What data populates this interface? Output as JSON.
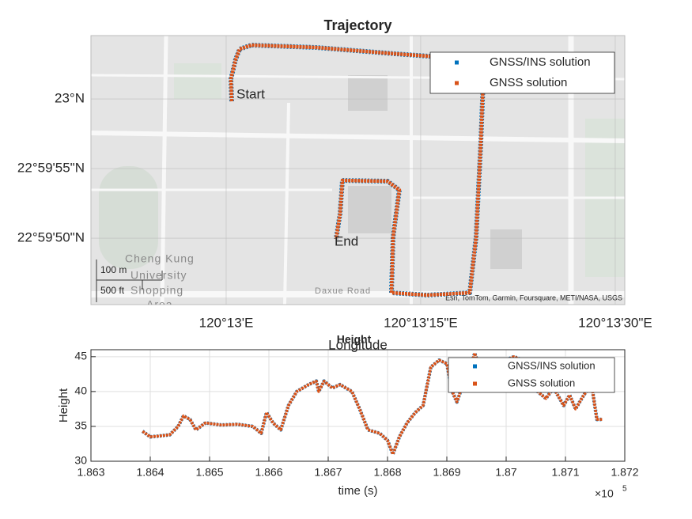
{
  "chart_data": [
    {
      "type": "scatter",
      "title": "Trajectory",
      "xlabel": "Longitude",
      "xlim": [
        120.213771,
        120.225204
      ],
      "ylim": [
        22.995897,
        23.001263
      ],
      "xticks": [
        {
          "value": 120.216667,
          "label": "120°13'E"
        },
        {
          "value": 120.220833,
          "label": "120°13'15\"E"
        },
        {
          "value": 120.225,
          "label": "120°13'30\"E"
        }
      ],
      "yticks": [
        {
          "value": 22.997222,
          "label": "22°59'50\"N"
        },
        {
          "value": 22.998611,
          "label": "22°59'55\"N"
        },
        {
          "value": 23.0,
          "label": "23°N"
        }
      ],
      "grid": true,
      "legend": "northeast",
      "annotations": [
        "Start",
        "End"
      ],
      "scale_bar": [
        "100 m",
        "500 ft"
      ],
      "attribution": "Esri, TomTom, Garmin, Foursquare, METI/NASA, USGS",
      "map_labels": [
        "Cheng Kung",
        "University",
        "Shopping",
        "Area",
        "Daxue Road"
      ],
      "series": [
        {
          "name": "GNSS/INS solution",
          "color": "#0072bd",
          "x": [
            120.216786,
            120.216768,
            120.21687,
            120.216955,
            120.217209,
            120.218598,
            120.220292,
            120.222189,
            120.222121,
            120.222019,
            120.221884,
            120.220969,
            120.220207,
            120.220241,
            120.220376,
            120.220122,
            120.219157,
            120.219106,
            120.219021
          ],
          "values": [
            22.999953,
            23.000395,
            23.000789,
            23.000994,
            23.001073,
            23.001026,
            23.0009,
            23.000773,
            22.999132,
            22.997238,
            22.996133,
            22.996086,
            22.996133,
            22.997238,
            22.998185,
            22.998359,
            22.998374,
            22.997711,
            22.997206
          ]
        },
        {
          "name": "GNSS solution",
          "color": "#d95319",
          "x": [
            120.216786,
            120.216768,
            120.21687,
            120.216955,
            120.217209,
            120.218598,
            120.220292,
            120.222189,
            120.222121,
            120.222019,
            120.221884,
            120.220969,
            120.220207,
            120.220241,
            120.220376,
            120.220122,
            120.219157,
            120.219106,
            120.219021
          ],
          "values": [
            22.999953,
            23.000395,
            23.000789,
            23.000994,
            23.001073,
            23.001026,
            23.0009,
            23.000773,
            22.999132,
            22.997238,
            22.996133,
            22.996086,
            22.996133,
            22.997238,
            22.998185,
            22.998359,
            22.998374,
            22.997711,
            22.997206
          ]
        }
      ]
    },
    {
      "type": "line",
      "title": "Height",
      "xlabel": "time (s)",
      "ylabel": "Height",
      "x_multiplier": "×10",
      "x_multiplier_exp": "5",
      "xlim": [
        186300,
        187200
      ],
      "ylim": [
        30,
        46
      ],
      "xticks": [
        {
          "value": 186300,
          "label": "1.863"
        },
        {
          "value": 186400,
          "label": "1.864"
        },
        {
          "value": 186500,
          "label": "1.865"
        },
        {
          "value": 186600,
          "label": "1.866"
        },
        {
          "value": 186700,
          "label": "1.867"
        },
        {
          "value": 186800,
          "label": "1.868"
        },
        {
          "value": 186900,
          "label": "1.869"
        },
        {
          "value": 187000,
          "label": "1.87"
        },
        {
          "value": 187100,
          "label": "1.871"
        },
        {
          "value": 187200,
          "label": "1.872"
        }
      ],
      "yticks": [
        30,
        35,
        40,
        45
      ],
      "grid": true,
      "legend": "northeast",
      "x": [
        186387,
        186400,
        186413,
        186433,
        186447,
        186456,
        186467,
        186477,
        186493,
        186520,
        186547,
        186573,
        186587,
        186596,
        186607,
        186620,
        186633,
        186647,
        186667,
        186680,
        186684,
        186693,
        186707,
        186720,
        186740,
        186753,
        186767,
        186787,
        186800,
        186809,
        186820,
        186833,
        186847,
        186860,
        186873,
        186887,
        186900,
        186909,
        186917,
        186927,
        186940,
        186947,
        186953,
        186967,
        186987,
        187013,
        187027,
        187040,
        187053,
        187067,
        187080,
        187097,
        187107,
        187117,
        187131,
        187144,
        187153,
        187163
      ],
      "series": [
        {
          "name": "GNSS/INS solution",
          "color": "#0072bd",
          "values": [
            34.3,
            33.5,
            33.6,
            33.8,
            35.0,
            36.5,
            36.0,
            34.5,
            35.5,
            35.2,
            35.3,
            35.0,
            34.0,
            37.0,
            35.5,
            34.5,
            38.0,
            40.0,
            41.0,
            41.5,
            40.0,
            41.5,
            40.5,
            41.0,
            40.0,
            37.5,
            34.5,
            34.0,
            33.0,
            31.0,
            33.5,
            35.5,
            37.0,
            38.0,
            43.5,
            44.5,
            44.0,
            40.0,
            38.5,
            41.0,
            43.5,
            45.5,
            44.0,
            42.0,
            44.0,
            45.0,
            44.5,
            44.0,
            40.0,
            39.0,
            40.5,
            38.0,
            39.5,
            37.5,
            39.5,
            41.0,
            36.0,
            36.0
          ]
        },
        {
          "name": "GNSS solution",
          "color": "#d95319",
          "values": [
            34.3,
            33.5,
            33.6,
            33.8,
            35.0,
            36.5,
            36.0,
            34.5,
            35.5,
            35.2,
            35.3,
            35.0,
            34.0,
            37.0,
            35.5,
            34.5,
            38.0,
            40.0,
            41.0,
            41.5,
            40.0,
            41.5,
            40.5,
            41.0,
            40.0,
            37.5,
            34.5,
            34.0,
            33.0,
            31.0,
            33.5,
            35.5,
            37.0,
            38.0,
            43.5,
            44.5,
            44.0,
            40.0,
            38.5,
            41.0,
            43.5,
            45.5,
            44.0,
            42.0,
            44.0,
            45.0,
            44.5,
            44.0,
            40.0,
            39.0,
            40.5,
            38.0,
            39.5,
            37.5,
            39.5,
            41.0,
            36.0,
            36.0
          ]
        }
      ]
    }
  ]
}
